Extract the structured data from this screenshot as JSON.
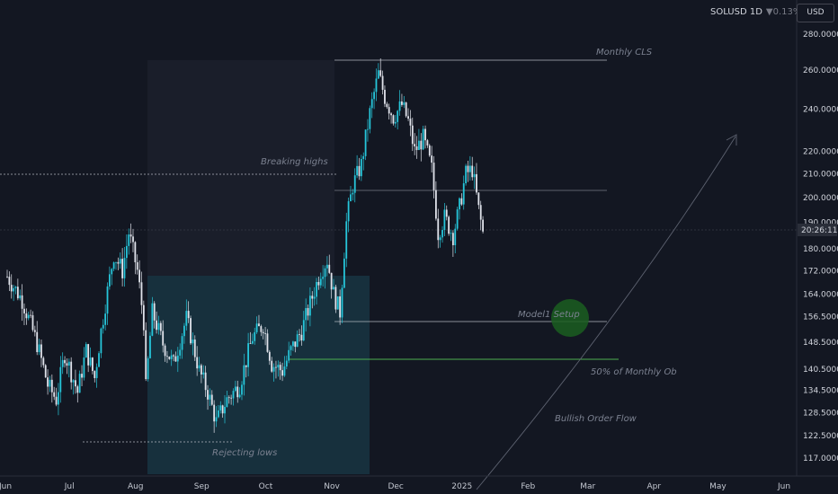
{
  "header": {
    "symbol": "SOLUSD 1D",
    "change": "▼0.13%",
    "currency_button": "USD",
    "last_price_label": "20:26:11"
  },
  "colors": {
    "background": "#131722",
    "candle_up": "#26c6da",
    "candle_down": "#e0e3eb",
    "ob_zone": "#17303d",
    "neutral_zone": "#1a1e2a",
    "green_line": "#4caf50",
    "setup_circle": "#1b5e20",
    "level_line": "#b2b5be"
  },
  "chart_data": {
    "type": "candlestick",
    "title": "",
    "xlabel": "",
    "ylabel": "",
    "y_scale": "log",
    "y_ticks": [
      "117.0000",
      "122.5000",
      "128.5000",
      "134.5000",
      "140.5000",
      "148.5000",
      "156.5000",
      "164.0000",
      "172.0000",
      "180.0000",
      "190.0000",
      "200.0000",
      "210.0000",
      "220.0000",
      "240.0000",
      "260.0000",
      "280.0000"
    ],
    "x_ticks": [
      "Jun",
      "Jul",
      "Aug",
      "Sep",
      "Oct",
      "Nov",
      "Dec",
      "2025",
      "Feb",
      "Mar",
      "Apr",
      "May",
      "Jun"
    ],
    "x_range": [
      "2024-06-01",
      "2025-06-01"
    ],
    "current_price": 186,
    "price_path": [
      [
        "2024-06-01",
        170
      ],
      [
        "2024-06-08",
        162
      ],
      [
        "2024-06-15",
        148
      ],
      [
        "2024-06-20",
        136
      ],
      [
        "2024-06-24",
        132
      ],
      [
        "2024-06-28",
        145
      ],
      [
        "2024-07-04",
        134
      ],
      [
        "2024-07-08",
        146
      ],
      [
        "2024-07-12",
        138
      ],
      [
        "2024-07-15",
        152
      ],
      [
        "2024-07-18",
        165
      ],
      [
        "2024-07-21",
        178
      ],
      [
        "2024-07-25",
        172
      ],
      [
        "2024-07-28",
        186
      ],
      [
        "2024-08-01",
        172
      ],
      [
        "2024-08-04",
        155
      ],
      [
        "2024-08-05",
        135
      ],
      [
        "2024-08-08",
        158
      ],
      [
        "2024-08-13",
        148
      ],
      [
        "2024-08-18",
        142
      ],
      [
        "2024-08-24",
        156
      ],
      [
        "2024-08-30",
        140
      ],
      [
        "2024-09-03",
        134
      ],
      [
        "2024-09-07",
        126
      ],
      [
        "2024-09-12",
        132
      ],
      [
        "2024-09-18",
        136
      ],
      [
        "2024-09-24",
        150
      ],
      [
        "2024-09-29",
        154
      ],
      [
        "2024-10-03",
        142
      ],
      [
        "2024-10-08",
        140
      ],
      [
        "2024-10-12",
        146
      ],
      [
        "2024-10-17",
        152
      ],
      [
        "2024-10-22",
        163
      ],
      [
        "2024-10-26",
        172
      ],
      [
        "2024-10-29",
        176
      ],
      [
        "2024-11-01",
        164
      ],
      [
        "2024-11-04",
        158
      ],
      [
        "2024-11-07",
        190
      ],
      [
        "2024-11-10",
        205
      ],
      [
        "2024-11-14",
        214
      ],
      [
        "2024-11-18",
        238
      ],
      [
        "2024-11-22",
        258
      ],
      [
        "2024-11-25",
        246
      ],
      [
        "2024-11-29",
        236
      ],
      [
        "2024-12-03",
        242
      ],
      [
        "2024-12-06",
        234
      ],
      [
        "2024-12-09",
        220
      ],
      [
        "2024-12-13",
        226
      ],
      [
        "2024-12-17",
        212
      ],
      [
        "2024-12-20",
        186
      ],
      [
        "2024-12-23",
        192
      ],
      [
        "2024-12-27",
        185
      ],
      [
        "2024-12-30",
        196
      ],
      [
        "2025-01-02",
        210
      ],
      [
        "2025-01-05",
        212
      ],
      [
        "2025-01-08",
        195
      ],
      [
        "2025-01-10",
        186
      ]
    ],
    "annotations": {
      "monthly_cls": {
        "text": "Monthly CLS",
        "price": 265
      },
      "breaking_highs": {
        "text": "Breaking highs",
        "price": 210
      },
      "mid_level": {
        "price": 203
      },
      "model1_setup": {
        "text": "Model1 Setup",
        "price": 155
      },
      "fifty_pct_ob": {
        "text": "50% of Monthly Ob",
        "price": 143
      },
      "bullish_order_flow": {
        "text": "Bullish Order Flow"
      },
      "rejecting_lows": {
        "text": "Rejecting lows",
        "price": 120.5
      }
    }
  }
}
